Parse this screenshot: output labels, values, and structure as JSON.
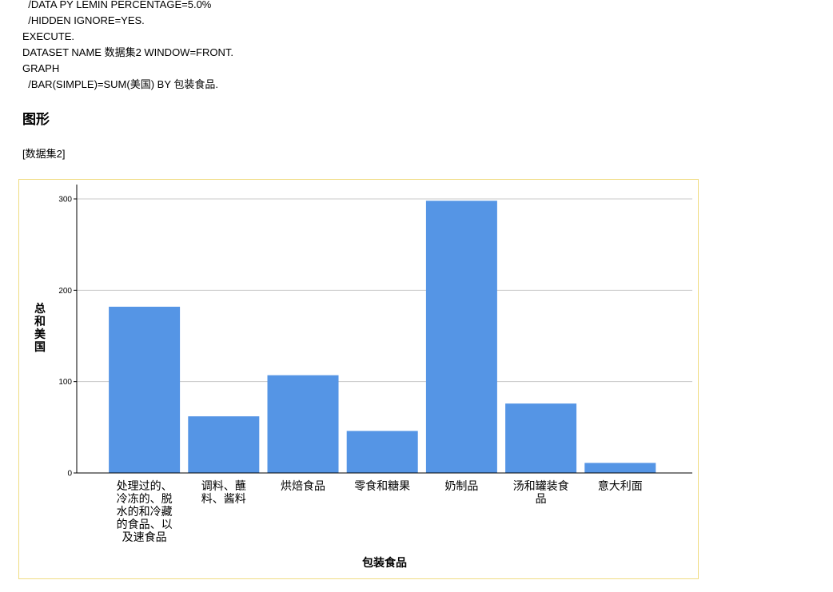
{
  "syntax_lines": [
    "  /DATA PY LEMIN PERCENTAGE=5.0%",
    "  /HIDDEN IGNORE=YES.",
    "EXECUTE.",
    "DATASET NAME 数据集2 WINDOW=FRONT.",
    "GRAPH",
    "  /BAR(SIMPLE)=SUM(美国) BY 包装食品."
  ],
  "section_title": "图形",
  "dataset_tag": "[数据集2]",
  "colors": {
    "bar": "#5595e5",
    "grid": "#c8c8c8",
    "frame_border": "#f0dc82"
  },
  "chart_data": {
    "type": "bar",
    "categories": [
      "处理过的、冷冻的、脱水的和冷藏的食品、以及速食品",
      "调料、蘸料、酱料",
      "烘焙食品",
      "零食和糖果",
      "奶制品",
      "汤和罐装食品",
      "意大利面"
    ],
    "category_label_lines": [
      [
        "处理过的、",
        "冷冻的、脱",
        "水的和冷藏",
        "的食品、以",
        "及速食品"
      ],
      [
        "调料、蘸",
        "料、酱料"
      ],
      [
        "烘焙食品"
      ],
      [
        "零食和糖果"
      ],
      [
        "奶制品"
      ],
      [
        "汤和罐装食",
        "品"
      ],
      [
        "意大利面"
      ]
    ],
    "values": [
      182,
      62,
      107,
      46,
      298,
      76,
      11
    ],
    "xlabel": "包装食品",
    "ylabel": "总和美国",
    "ylim": [
      0,
      300
    ],
    "yticks": [
      0,
      100,
      200,
      300
    ],
    "grid": true
  }
}
